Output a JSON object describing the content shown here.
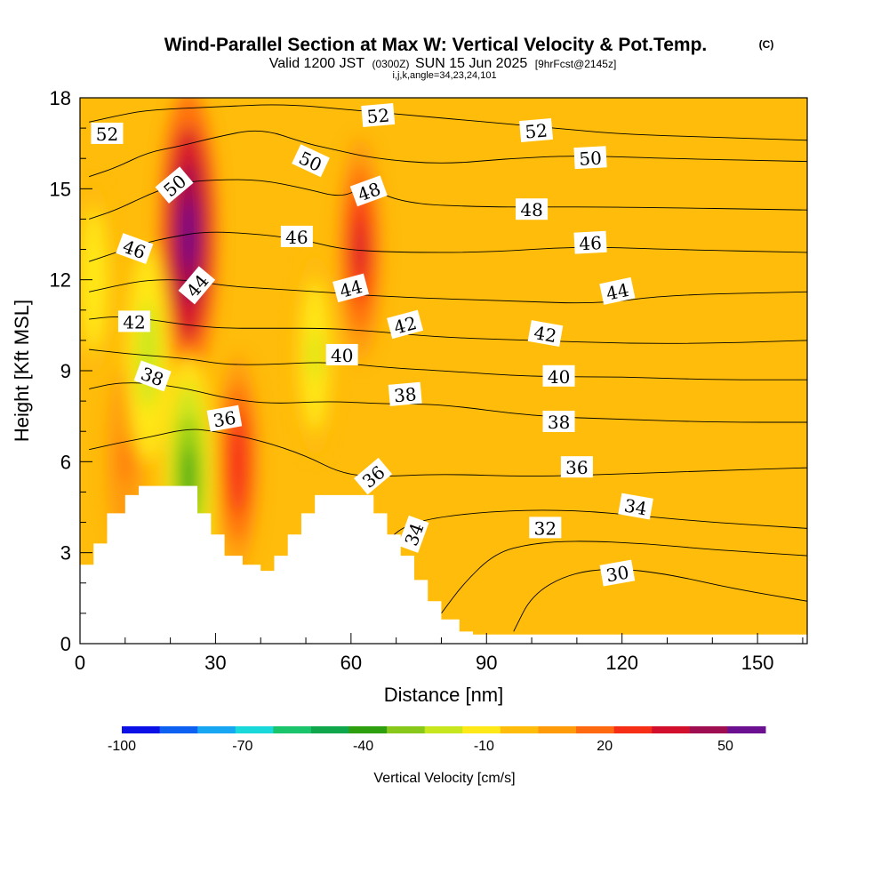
{
  "title": "Wind-Parallel Section at Max W: Vertical Velocity & Pot.Temp.",
  "title_mark": "(C)",
  "subtitle_main": "Valid 1200 JST",
  "subtitle_utc": "(0300Z)",
  "subtitle_date": "SUN 15 Jun 2025",
  "subtitle_fcst": "[9hrFcst@2145z]",
  "subtitle_ijk": "i,j,k,angle=34,23,24,101",
  "chart_data": {
    "type": "heatmap",
    "xlabel": "Distance [nm]",
    "ylabel": "Height [Kft MSL]",
    "xlim": [
      0,
      161
    ],
    "ylim": [
      0,
      18
    ],
    "x_ticks": [
      "0",
      "30",
      "60",
      "90",
      "120",
      "150"
    ],
    "x_tick_values": [
      0,
      30,
      60,
      90,
      120,
      150
    ],
    "y_ticks": [
      "0",
      "3",
      "6",
      "9",
      "12",
      "15",
      "18"
    ],
    "y_tick_values": [
      0,
      3,
      6,
      9,
      12,
      15,
      18
    ],
    "colorbar": {
      "label": "Vertical Velocity [cm/s]",
      "colors": [
        "#0a10e6",
        "#0d60f0",
        "#16a6f2",
        "#19d8da",
        "#1ac46a",
        "#10a64c",
        "#2ea010",
        "#88c81a",
        "#c8e61e",
        "#ffe818",
        "#ffbc0a",
        "#ff9a08",
        "#ff6a10",
        "#f62e16",
        "#d2102e",
        "#a00e52",
        "#6a1090"
      ],
      "tick_labels": [
        "-100",
        "-70",
        "-40",
        "-10",
        "20",
        "50"
      ],
      "tick_values": [
        -100,
        -70,
        -40,
        -10,
        20,
        50
      ]
    },
    "background_color": "#ffbc0a",
    "updraft_cores": [
      {
        "x": 24,
        "y": 13.5,
        "w_cms": 60
      },
      {
        "x": 62,
        "y": 13.0,
        "w_cms": 30
      },
      {
        "x": 35,
        "y": 6.0,
        "w_cms": 25
      },
      {
        "x": 10,
        "y": 6.0,
        "w_cms": 12
      }
    ],
    "downdraft_cores": [
      {
        "x": 15,
        "y": 9.5,
        "w_cms": -25
      },
      {
        "x": 24,
        "y": 5.5,
        "w_cms": -40
      },
      {
        "x": 3,
        "y": 12.0,
        "w_cms": -15
      },
      {
        "x": 52,
        "y": 9.5,
        "w_cms": -20
      }
    ],
    "terrain": [
      {
        "x": 0,
        "y": 2.6
      },
      {
        "x": 3,
        "y": 3.3
      },
      {
        "x": 6,
        "y": 4.3
      },
      {
        "x": 10,
        "y": 4.9
      },
      {
        "x": 13,
        "y": 5.2
      },
      {
        "x": 23,
        "y": 5.2
      },
      {
        "x": 26,
        "y": 4.3
      },
      {
        "x": 29,
        "y": 3.6
      },
      {
        "x": 32,
        "y": 2.9
      },
      {
        "x": 36,
        "y": 2.6
      },
      {
        "x": 40,
        "y": 2.4
      },
      {
        "x": 43,
        "y": 2.9
      },
      {
        "x": 46,
        "y": 3.6
      },
      {
        "x": 49,
        "y": 4.3
      },
      {
        "x": 52,
        "y": 4.9
      },
      {
        "x": 62,
        "y": 4.9
      },
      {
        "x": 65,
        "y": 4.3
      },
      {
        "x": 68,
        "y": 3.6
      },
      {
        "x": 71,
        "y": 2.9
      },
      {
        "x": 74,
        "y": 2.1
      },
      {
        "x": 77,
        "y": 1.4
      },
      {
        "x": 80,
        "y": 0.8
      },
      {
        "x": 84,
        "y": 0.4
      },
      {
        "x": 87,
        "y": 0.3
      },
      {
        "x": 161,
        "y": 0.3
      }
    ],
    "theta_isolines": [
      {
        "theta": 52,
        "points": [
          [
            2,
            17.2
          ],
          [
            8,
            17.4
          ],
          [
            15,
            17.6
          ],
          [
            30,
            17.7
          ],
          [
            45,
            17.8
          ],
          [
            60,
            17.6
          ],
          [
            75,
            17.4
          ],
          [
            90,
            17.2
          ],
          [
            105,
            17.0
          ],
          [
            120,
            16.8
          ],
          [
            140,
            16.7
          ],
          [
            161,
            16.6
          ]
        ]
      },
      {
        "theta": 50,
        "points": [
          [
            2,
            15.4
          ],
          [
            8,
            15.7
          ],
          [
            15,
            16.2
          ],
          [
            22,
            16.4
          ],
          [
            30,
            16.7
          ],
          [
            40,
            17.0
          ],
          [
            50,
            16.5
          ],
          [
            56,
            16.3
          ],
          [
            65,
            16.0
          ],
          [
            80,
            15.8
          ],
          [
            95,
            16.0
          ],
          [
            110,
            16.1
          ],
          [
            130,
            16.0
          ],
          [
            161,
            15.9
          ]
        ]
      },
      {
        "theta": 48,
        "points": [
          [
            2,
            14.0
          ],
          [
            8,
            14.3
          ],
          [
            15,
            14.8
          ],
          [
            22,
            15.2
          ],
          [
            30,
            15.3
          ],
          [
            40,
            15.3
          ],
          [
            50,
            15.0
          ],
          [
            58,
            14.7
          ],
          [
            63,
            15.1
          ],
          [
            72,
            14.5
          ],
          [
            90,
            14.4
          ],
          [
            100,
            14.4
          ],
          [
            120,
            14.4
          ],
          [
            161,
            14.3
          ]
        ]
      },
      {
        "theta": 46,
        "points": [
          [
            2,
            12.6
          ],
          [
            8,
            12.9
          ],
          [
            14,
            13.2
          ],
          [
            20,
            13.4
          ],
          [
            28,
            13.6
          ],
          [
            40,
            13.5
          ],
          [
            50,
            13.3
          ],
          [
            58,
            13.0
          ],
          [
            70,
            12.9
          ],
          [
            90,
            12.9
          ],
          [
            110,
            13.1
          ],
          [
            130,
            13.0
          ],
          [
            161,
            12.9
          ]
        ]
      },
      {
        "theta": 44,
        "points": [
          [
            2,
            11.6
          ],
          [
            8,
            11.8
          ],
          [
            15,
            12.0
          ],
          [
            24,
            12.0
          ],
          [
            32,
            11.8
          ],
          [
            42,
            11.7
          ],
          [
            53,
            11.6
          ],
          [
            62,
            11.5
          ],
          [
            75,
            11.4
          ],
          [
            95,
            11.3
          ],
          [
            115,
            11.2
          ],
          [
            130,
            11.5
          ],
          [
            161,
            11.6
          ]
        ]
      },
      {
        "theta": 42,
        "points": [
          [
            2,
            10.7
          ],
          [
            8,
            10.8
          ],
          [
            15,
            10.7
          ],
          [
            24,
            10.5
          ],
          [
            32,
            10.4
          ],
          [
            42,
            10.4
          ],
          [
            55,
            10.4
          ],
          [
            65,
            10.3
          ],
          [
            80,
            10.1
          ],
          [
            100,
            10.0
          ],
          [
            120,
            9.9
          ],
          [
            140,
            9.9
          ],
          [
            161,
            10.0
          ]
        ]
      },
      {
        "theta": 40,
        "points": [
          [
            2,
            9.7
          ],
          [
            8,
            9.6
          ],
          [
            15,
            9.5
          ],
          [
            24,
            9.4
          ],
          [
            32,
            9.2
          ],
          [
            42,
            9.2
          ],
          [
            55,
            9.3
          ],
          [
            68,
            9.1
          ],
          [
            80,
            9.0
          ],
          [
            100,
            8.8
          ],
          [
            120,
            8.8
          ],
          [
            140,
            8.7
          ],
          [
            161,
            8.7
          ]
        ]
      },
      {
        "theta": 38,
        "points": [
          [
            2,
            8.4
          ],
          [
            8,
            8.6
          ],
          [
            15,
            8.6
          ],
          [
            24,
            8.4
          ],
          [
            32,
            8.1
          ],
          [
            42,
            7.9
          ],
          [
            55,
            8.0
          ],
          [
            68,
            7.9
          ],
          [
            80,
            7.9
          ],
          [
            100,
            7.5
          ],
          [
            120,
            7.4
          ],
          [
            140,
            7.3
          ],
          [
            161,
            7.3
          ]
        ]
      },
      {
        "theta": 36,
        "points": [
          [
            2,
            6.4
          ],
          [
            8,
            6.6
          ],
          [
            15,
            6.8
          ],
          [
            24,
            7.1
          ],
          [
            30,
            7.0
          ],
          [
            40,
            6.7
          ],
          [
            50,
            6.2
          ],
          [
            58,
            5.6
          ],
          [
            66,
            5.5
          ],
          [
            80,
            5.6
          ],
          [
            100,
            5.5
          ],
          [
            120,
            5.6
          ],
          [
            140,
            5.7
          ],
          [
            161,
            5.8
          ]
        ]
      },
      {
        "theta": 34,
        "points": [
          [
            68,
            3.4
          ],
          [
            72,
            3.9
          ],
          [
            80,
            4.2
          ],
          [
            95,
            4.4
          ],
          [
            110,
            4.4
          ],
          [
            125,
            4.2
          ],
          [
            140,
            4.0
          ],
          [
            161,
            3.8
          ]
        ]
      },
      {
        "theta": 32,
        "points": [
          [
            80,
            1.0
          ],
          [
            85,
            2.0
          ],
          [
            92,
            3.0
          ],
          [
            100,
            3.3
          ],
          [
            110,
            3.4
          ],
          [
            125,
            3.3
          ],
          [
            140,
            3.1
          ],
          [
            161,
            2.9
          ]
        ]
      },
      {
        "theta": 30,
        "points": [
          [
            96,
            0.4
          ],
          [
            100,
            1.6
          ],
          [
            108,
            2.3
          ],
          [
            118,
            2.5
          ],
          [
            130,
            2.3
          ],
          [
            145,
            1.8
          ],
          [
            161,
            1.4
          ]
        ]
      }
    ],
    "isoline_labels": [
      {
        "text": "52",
        "x": 6,
        "y": 16.8,
        "angle": 0
      },
      {
        "text": "52",
        "x": 66,
        "y": 17.4,
        "angle": -5
      },
      {
        "text": "52",
        "x": 101,
        "y": 16.9,
        "angle": -5
      },
      {
        "text": "50",
        "x": 21,
        "y": 15.1,
        "angle": -40
      },
      {
        "text": "50",
        "x": 51,
        "y": 15.9,
        "angle": 25
      },
      {
        "text": "50",
        "x": 113,
        "y": 16.0,
        "angle": -3
      },
      {
        "text": "48",
        "x": 64,
        "y": 14.9,
        "angle": -20
      },
      {
        "text": "48",
        "x": 100,
        "y": 14.3,
        "angle": 0
      },
      {
        "text": "46",
        "x": 12,
        "y": 13.0,
        "angle": 20
      },
      {
        "text": "46",
        "x": 48,
        "y": 13.4,
        "angle": 0
      },
      {
        "text": "46",
        "x": 113,
        "y": 13.2,
        "angle": -3
      },
      {
        "text": "44",
        "x": 26,
        "y": 11.8,
        "angle": -50
      },
      {
        "text": "44",
        "x": 60,
        "y": 11.7,
        "angle": -15
      },
      {
        "text": "44",
        "x": 119,
        "y": 11.6,
        "angle": -12
      },
      {
        "text": "42",
        "x": 12,
        "y": 10.6,
        "angle": 0
      },
      {
        "text": "42",
        "x": 72,
        "y": 10.5,
        "angle": -15
      },
      {
        "text": "42",
        "x": 103,
        "y": 10.2,
        "angle": 10
      },
      {
        "text": "40",
        "x": 58,
        "y": 9.5,
        "angle": 0
      },
      {
        "text": "40",
        "x": 106,
        "y": 8.8,
        "angle": 0
      },
      {
        "text": "38",
        "x": 16,
        "y": 8.8,
        "angle": 20
      },
      {
        "text": "38",
        "x": 72,
        "y": 8.2,
        "angle": -5
      },
      {
        "text": "38",
        "x": 106,
        "y": 7.3,
        "angle": 0
      },
      {
        "text": "36",
        "x": 32,
        "y": 7.4,
        "angle": -10
      },
      {
        "text": "36",
        "x": 65,
        "y": 5.5,
        "angle": -40
      },
      {
        "text": "36",
        "x": 110,
        "y": 5.8,
        "angle": 0
      },
      {
        "text": "34",
        "x": 74,
        "y": 3.6,
        "angle": -70
      },
      {
        "text": "34",
        "x": 123,
        "y": 4.5,
        "angle": 10
      },
      {
        "text": "32",
        "x": 103,
        "y": 3.8,
        "angle": 0
      },
      {
        "text": "30",
        "x": 119,
        "y": 2.3,
        "angle": -10
      }
    ]
  }
}
